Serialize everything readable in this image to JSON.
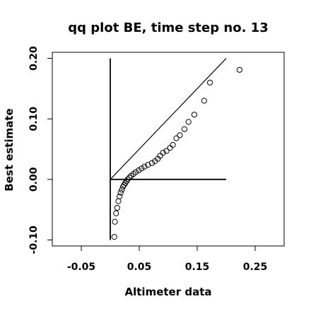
{
  "chart_data": {
    "type": "scatter",
    "title": "qq plot BE, time step no. 13",
    "xlabel": "Altimeter data",
    "ylabel": "Best estimate",
    "xlim": [
      -0.1,
      0.3
    ],
    "ylim": [
      -0.11,
      0.21
    ],
    "x_ticks": [
      -0.05,
      0.05,
      0.15,
      0.25
    ],
    "x_tick_labels": [
      "-0.05",
      "0.05",
      "0.15",
      "0.25"
    ],
    "y_ticks": [
      -0.1,
      0.0,
      0.1,
      0.2
    ],
    "y_tick_labels": [
      "-0.10",
      "0.00",
      "0.10",
      "0.20"
    ],
    "grid": false,
    "legend": "none",
    "reference_lines": [
      {
        "name": "identity",
        "x": [
          0.0,
          0.2
        ],
        "y": [
          0.0,
          0.2
        ]
      },
      {
        "name": "vertical-axis",
        "x": [
          0.0,
          0.0
        ],
        "y": [
          -0.1,
          0.2
        ]
      },
      {
        "name": "horizontal-axis",
        "x": [
          0.0,
          0.2
        ],
        "y": [
          0.0,
          0.0
        ]
      }
    ],
    "points": [
      {
        "x": 0.007,
        "y": -0.095
      },
      {
        "x": 0.008,
        "y": -0.07
      },
      {
        "x": 0.01,
        "y": -0.056
      },
      {
        "x": 0.012,
        "y": -0.047
      },
      {
        "x": 0.014,
        "y": -0.036
      },
      {
        "x": 0.016,
        "y": -0.028
      },
      {
        "x": 0.018,
        "y": -0.022
      },
      {
        "x": 0.02,
        "y": -0.017
      },
      {
        "x": 0.022,
        "y": -0.012
      },
      {
        "x": 0.024,
        "y": -0.009
      },
      {
        "x": 0.026,
        "y": -0.006
      },
      {
        "x": 0.028,
        "y": -0.003
      },
      {
        "x": 0.03,
        "y": 0.0
      },
      {
        "x": 0.033,
        "y": 0.003
      },
      {
        "x": 0.036,
        "y": 0.006
      },
      {
        "x": 0.04,
        "y": 0.009
      },
      {
        "x": 0.044,
        "y": 0.012
      },
      {
        "x": 0.049,
        "y": 0.015
      },
      {
        "x": 0.054,
        "y": 0.018
      },
      {
        "x": 0.059,
        "y": 0.021
      },
      {
        "x": 0.065,
        "y": 0.024
      },
      {
        "x": 0.072,
        "y": 0.027
      },
      {
        "x": 0.077,
        "y": 0.03
      },
      {
        "x": 0.082,
        "y": 0.034
      },
      {
        "x": 0.086,
        "y": 0.039
      },
      {
        "x": 0.091,
        "y": 0.044
      },
      {
        "x": 0.097,
        "y": 0.047
      },
      {
        "x": 0.103,
        "y": 0.052
      },
      {
        "x": 0.108,
        "y": 0.057
      },
      {
        "x": 0.114,
        "y": 0.068
      },
      {
        "x": 0.12,
        "y": 0.073
      },
      {
        "x": 0.128,
        "y": 0.083
      },
      {
        "x": 0.135,
        "y": 0.095
      },
      {
        "x": 0.145,
        "y": 0.107
      },
      {
        "x": 0.162,
        "y": 0.13
      },
      {
        "x": 0.172,
        "y": 0.16
      },
      {
        "x": 0.223,
        "y": 0.181
      }
    ]
  }
}
